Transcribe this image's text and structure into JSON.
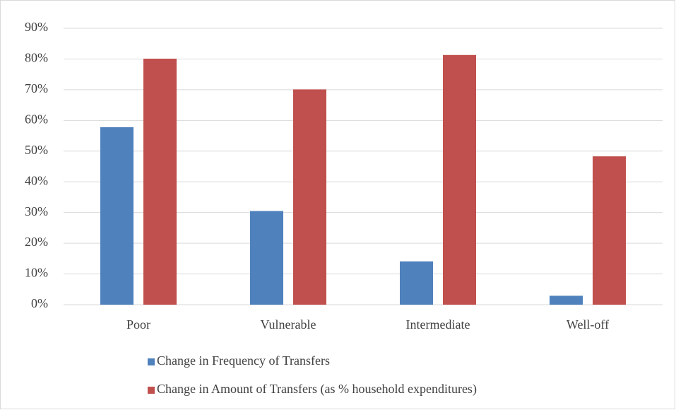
{
  "chart_data": {
    "type": "bar",
    "categories": [
      "Poor",
      "Vulnerable",
      "Intermediate",
      "Well-off"
    ],
    "series": [
      {
        "name": "Change in Frequency of Transfers",
        "color": "#4f81bd",
        "values": [
          57.8,
          30.5,
          14.1,
          2.9
        ]
      },
      {
        "name": "Change in Amount of Transfers (as % household expenditures)",
        "color": "#c0504d",
        "values": [
          80.1,
          70.1,
          81.3,
          48.3
        ]
      }
    ],
    "ylim": [
      0,
      90
    ],
    "yticks": [
      {
        "value": 0,
        "label": "0%"
      },
      {
        "value": 10,
        "label": "10%"
      },
      {
        "value": 20,
        "label": "20%"
      },
      {
        "value": 30,
        "label": "30%"
      },
      {
        "value": 40,
        "label": "40%"
      },
      {
        "value": 50,
        "label": "50%"
      },
      {
        "value": 60,
        "label": "60%"
      },
      {
        "value": 70,
        "label": "70%"
      },
      {
        "value": 80,
        "label": "80%"
      },
      {
        "value": 90,
        "label": "90%"
      }
    ],
    "grid": true,
    "legend": "bottom"
  }
}
